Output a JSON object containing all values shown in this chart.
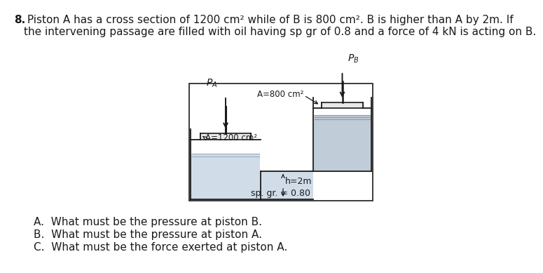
{
  "title_bold": "8.",
  "title_rest": " Piston A has a cross section of 1200 cm² while of B is 800 cm². B is higher than A by 2m. If\nthe intervening passage are filled with oil having sp gr of 0.8 and a force of 4 kN is acting on B.",
  "label_PA": "$P_A$",
  "label_PB": "$P_B$",
  "label_A800": "A=800 cm²",
  "label_A1200": "A=1200 cm²",
  "label_h": "h=2m",
  "label_spgr": "sp. gr. = 0.80",
  "question_A": "A.  What must be the pressure at piston B.",
  "question_B": "B.  What must be the pressure at piston A.",
  "question_C": "C.  What must be the force exerted at piston A.",
  "bg_color": "#ffffff",
  "text_color": "#1a1a1a",
  "line_color": "#1a1a1a",
  "oil_light": "#d0dce8",
  "oil_mid": "#c0ccd8",
  "wall_color": "#e8e8e8"
}
